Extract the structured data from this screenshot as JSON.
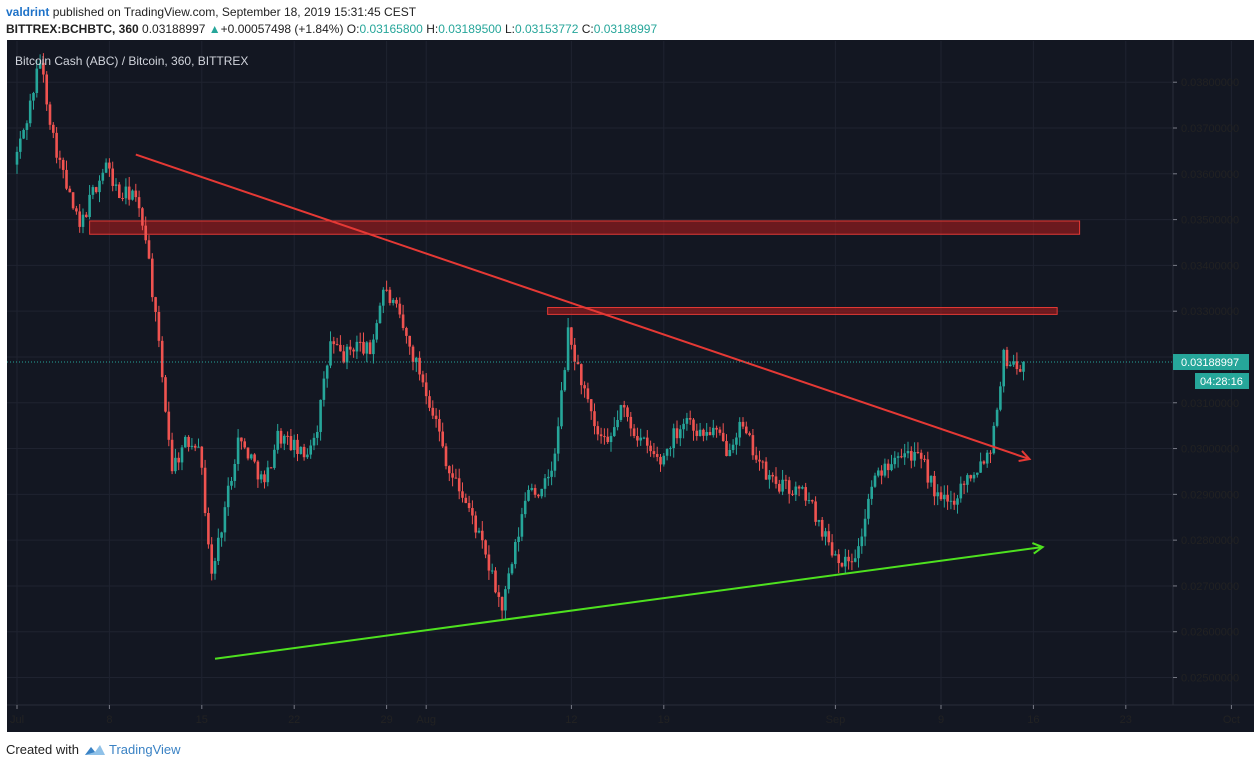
{
  "header": {
    "user": "valdrint",
    "published_text": "published on TradingView.com, September 18, 2019 15:31:45 CEST",
    "symbol": "BITTREX:BCHBTC, 360",
    "last": "0.03188997",
    "change": "+0.00057498 (+1.84%)",
    "o_label": "O:",
    "o": "0.03165800",
    "h_label": "H:",
    "h": "0.03189500",
    "l_label": "L:",
    "l": "0.03153772",
    "c_label": "C:",
    "c": "0.03188997"
  },
  "footer": {
    "created_with": "Created with",
    "brand": "TradingView"
  },
  "colors": {
    "background": "#131722",
    "up": "#26a69a",
    "down": "#ef5350",
    "resistance_zone": "#b71c1c",
    "trend_down": "#e53935",
    "trend_up": "#4ee11f",
    "price_tag": "#26a69a"
  },
  "chart_data": {
    "type": "candlestick",
    "title": "Bitcoin Cash (ABC) / Bitcoin, 360, BITTREX",
    "xlabel": "",
    "ylabel": "",
    "ylim": [
      0.0244,
      0.0389
    ],
    "x_ticks": [
      "Jul",
      "8",
      "15",
      "22",
      "29",
      "Aug",
      "12",
      "19",
      "Sep",
      "9",
      "16",
      "23",
      "Oct"
    ],
    "y_ticks": [
      "0.02500000",
      "0.02600000",
      "0.02700000",
      "0.02800000",
      "0.02900000",
      "0.03000000",
      "0.03100000",
      "0.03200000",
      "0.03300000",
      "0.03400000",
      "0.03500000",
      "0.03600000",
      "0.03700000",
      "0.03800000"
    ],
    "grid": true,
    "last_price": {
      "value": 0.03188997,
      "label": "0.03188997",
      "countdown": "04:28:16"
    },
    "anchors": [
      [
        0,
        0.0362
      ],
      [
        1,
        0.0372
      ],
      [
        2,
        0.0385
      ],
      [
        3,
        0.0368
      ],
      [
        4,
        0.0357
      ],
      [
        5,
        0.0348
      ],
      [
        6,
        0.0356
      ],
      [
        7,
        0.0362
      ],
      [
        8,
        0.0355
      ],
      [
        9,
        0.0356
      ],
      [
        10,
        0.0347
      ],
      [
        11,
        0.0322
      ],
      [
        12,
        0.0296
      ],
      [
        13,
        0.0301
      ],
      [
        14,
        0.0302
      ],
      [
        15,
        0.0272
      ],
      [
        16,
        0.0287
      ],
      [
        17,
        0.0302
      ],
      [
        18,
        0.0298
      ],
      [
        19,
        0.0292
      ],
      [
        20,
        0.0303
      ],
      [
        21,
        0.0301
      ],
      [
        22,
        0.0298
      ],
      [
        23,
        0.0305
      ],
      [
        24,
        0.0323
      ],
      [
        25,
        0.032
      ],
      [
        26,
        0.0323
      ],
      [
        27,
        0.0321
      ],
      [
        28,
        0.0335
      ],
      [
        29,
        0.033
      ],
      [
        30,
        0.0322
      ],
      [
        31,
        0.0315
      ],
      [
        32,
        0.0306
      ],
      [
        33,
        0.0295
      ],
      [
        34,
        0.029
      ],
      [
        35,
        0.0283
      ],
      [
        36,
        0.0274
      ],
      [
        37,
        0.0265
      ],
      [
        38,
        0.0278
      ],
      [
        39,
        0.0292
      ],
      [
        40,
        0.029
      ],
      [
        41,
        0.0298
      ],
      [
        42,
        0.0325
      ],
      [
        43,
        0.0315
      ],
      [
        44,
        0.0304
      ],
      [
        45,
        0.03
      ],
      [
        46,
        0.0309
      ],
      [
        47,
        0.0304
      ],
      [
        48,
        0.03
      ],
      [
        49,
        0.0297
      ],
      [
        50,
        0.0303
      ],
      [
        51,
        0.0307
      ],
      [
        52,
        0.0303
      ],
      [
        53,
        0.0304
      ],
      [
        54,
        0.03
      ],
      [
        55,
        0.0305
      ],
      [
        56,
        0.03
      ],
      [
        57,
        0.0294
      ],
      [
        58,
        0.0292
      ],
      [
        59,
        0.0291
      ],
      [
        60,
        0.029
      ],
      [
        61,
        0.0284
      ],
      [
        62,
        0.0278
      ],
      [
        63,
        0.0275
      ],
      [
        64,
        0.0278
      ],
      [
        65,
        0.0292
      ],
      [
        66,
        0.0296
      ],
      [
        67,
        0.03
      ],
      [
        68,
        0.0299
      ],
      [
        69,
        0.0296
      ],
      [
        70,
        0.0289
      ],
      [
        71,
        0.0288
      ],
      [
        72,
        0.0293
      ],
      [
        73,
        0.0296
      ],
      [
        74,
        0.03
      ],
      [
        75,
        0.032
      ],
      [
        76,
        0.0318
      ]
    ],
    "series": [
      {
        "name": "",
        "type": "zone",
        "y_from": 0.03468,
        "y_to": 0.03497,
        "x_from": 5.5,
        "x_to": 80.5
      },
      {
        "name": "",
        "type": "zone",
        "y_from": 0.03293,
        "y_to": 0.03308,
        "x_from": 40.2,
        "x_to": 78.8
      },
      {
        "name": "",
        "type": "trendline",
        "from": [
          9.0,
          0.03642
        ],
        "to": [
          70.0,
          0.03021
        ],
        "arrow_to": [
          76.7,
          0.02977
        ]
      },
      {
        "name": "",
        "type": "trendline",
        "from": [
          15.0,
          0.02541
        ],
        "to": [
          60.0,
          0.02722
        ],
        "arrow_to": [
          77.7,
          0.02785
        ]
      }
    ],
    "x_axis": {
      "origin_day": 0,
      "day_start": "2019-07-01"
    }
  }
}
